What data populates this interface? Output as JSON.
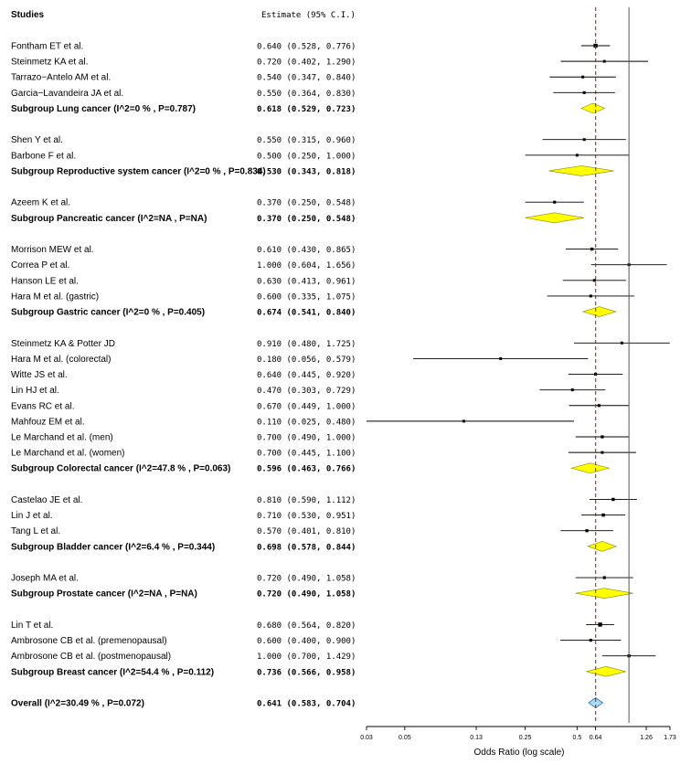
{
  "chart_data": {
    "type": "forest",
    "header_left": "Studies",
    "header_right": "Estimate (95% C.I.)",
    "xlabel": "Odds Ratio (log scale)",
    "x_scale": "log",
    "xlim": [
      0.03,
      1.73
    ],
    "x_ticks": [
      "0.03",
      "0.05",
      "0.13",
      "0.25",
      "0.5",
      "0.64",
      "1.26",
      "1.73"
    ],
    "reference_line": 1.0,
    "overall_line": 0.641,
    "colors": {
      "diamond": "#ffff00",
      "overall_diamond": "#aadcff",
      "refline": "#cc0000"
    },
    "groups": [
      {
        "studies": [
          {
            "name": "Fontham ET et al.",
            "or": 0.64,
            "lo": 0.528,
            "hi": 0.776,
            "est": "0.640 (0.528, 0.776)"
          },
          {
            "name": "Steinmetz KA et al.",
            "or": 0.72,
            "lo": 0.402,
            "hi": 1.29,
            "est": "0.720 (0.402, 1.290)"
          },
          {
            "name": "Tarrazo−Antelo AM et al.",
            "or": 0.54,
            "lo": 0.347,
            "hi": 0.84,
            "est": "0.540 (0.347, 0.840)"
          },
          {
            "name": "Garcia−Lavandeira JA et al.",
            "or": 0.55,
            "lo": 0.364,
            "hi": 0.83,
            "est": "0.550 (0.364, 0.830)"
          }
        ],
        "subgroup": {
          "label": "Subgroup Lung cancer (I^2=0 % , P=0.787)",
          "or": 0.618,
          "lo": 0.529,
          "hi": 0.723,
          "est": "0.618 (0.529, 0.723)"
        }
      },
      {
        "studies": [
          {
            "name": "Shen Y et al.",
            "or": 0.55,
            "lo": 0.315,
            "hi": 0.96,
            "est": "0.550 (0.315, 0.960)"
          },
          {
            "name": "Barbone F et al.",
            "or": 0.5,
            "lo": 0.25,
            "hi": 1.0,
            "est": "0.500 (0.250, 1.000)"
          }
        ],
        "subgroup": {
          "label": "Subgroup Reproductive system cancer (I^2=0 % , P=0.834)",
          "or": 0.53,
          "lo": 0.343,
          "hi": 0.818,
          "est": "0.530 (0.343, 0.818)"
        }
      },
      {
        "studies": [
          {
            "name": "Azeem K et al.",
            "or": 0.37,
            "lo": 0.25,
            "hi": 0.548,
            "est": "0.370 (0.250, 0.548)"
          }
        ],
        "subgroup": {
          "label": "Subgroup Pancreatic cancer (I^2=NA , P=NA)",
          "or": 0.37,
          "lo": 0.25,
          "hi": 0.548,
          "est": "0.370 (0.250, 0.548)"
        }
      },
      {
        "studies": [
          {
            "name": "Morrison MEW et al.",
            "or": 0.61,
            "lo": 0.43,
            "hi": 0.865,
            "est": "0.610 (0.430, 0.865)"
          },
          {
            "name": "Correa P et al.",
            "or": 1.0,
            "lo": 0.604,
            "hi": 1.656,
            "est": "1.000 (0.604, 1.656)"
          },
          {
            "name": "Hanson LE et al.",
            "or": 0.63,
            "lo": 0.413,
            "hi": 0.961,
            "est": "0.630 (0.413, 0.961)"
          },
          {
            "name": "Hara M et al. (gastric)",
            "or": 0.6,
            "lo": 0.335,
            "hi": 1.075,
            "est": "0.600 (0.335, 1.075)"
          }
        ],
        "subgroup": {
          "label": "Subgroup Gastric cancer (I^2=0 % , P=0.405)",
          "or": 0.674,
          "lo": 0.541,
          "hi": 0.84,
          "est": "0.674 (0.541, 0.840)"
        }
      },
      {
        "studies": [
          {
            "name": "Steinmetz KA & Potter JD",
            "or": 0.91,
            "lo": 0.48,
            "hi": 1.725,
            "est": "0.910 (0.480, 1.725)"
          },
          {
            "name": "Hara M et al. (colorectal)",
            "or": 0.18,
            "lo": 0.056,
            "hi": 0.579,
            "est": "0.180 (0.056, 0.579)"
          },
          {
            "name": "Witte JS et al.",
            "or": 0.64,
            "lo": 0.445,
            "hi": 0.92,
            "est": "0.640 (0.445, 0.920)"
          },
          {
            "name": "Lin HJ et al.",
            "or": 0.47,
            "lo": 0.303,
            "hi": 0.729,
            "est": "0.470 (0.303, 0.729)"
          },
          {
            "name": "Evans RC et al.",
            "or": 0.67,
            "lo": 0.449,
            "hi": 1.0,
            "est": "0.670 (0.449, 1.000)"
          },
          {
            "name": "Mahfouz EM et al.",
            "or": 0.11,
            "lo": 0.025,
            "hi": 0.48,
            "est": "0.110 (0.025, 0.480)"
          },
          {
            "name": "Le Marchand et al. (men)",
            "or": 0.7,
            "lo": 0.49,
            "hi": 1.0,
            "est": "0.700 (0.490, 1.000)"
          },
          {
            "name": "Le Marchand et al. (women)",
            "or": 0.7,
            "lo": 0.445,
            "hi": 1.1,
            "est": "0.700 (0.445, 1.100)"
          }
        ],
        "subgroup": {
          "label": "Subgroup Colorectal cancer (I^2=47.8 % , P=0.063)",
          "or": 0.596,
          "lo": 0.463,
          "hi": 0.766,
          "est": "0.596 (0.463, 0.766)"
        }
      },
      {
        "studies": [
          {
            "name": "Castelao JE et al.",
            "or": 0.81,
            "lo": 0.59,
            "hi": 1.112,
            "est": "0.810 (0.590, 1.112)"
          },
          {
            "name": "Lin J et al.",
            "or": 0.71,
            "lo": 0.53,
            "hi": 0.951,
            "est": "0.710 (0.530, 0.951)"
          },
          {
            "name": "Tang L et al.",
            "or": 0.57,
            "lo": 0.401,
            "hi": 0.81,
            "est": "0.570 (0.401, 0.810)"
          }
        ],
        "subgroup": {
          "label": "Subgroup Bladder cancer (I^2=6.4 % , P=0.344)",
          "or": 0.698,
          "lo": 0.578,
          "hi": 0.844,
          "est": "0.698 (0.578, 0.844)"
        }
      },
      {
        "studies": [
          {
            "name": "Joseph MA et al.",
            "or": 0.72,
            "lo": 0.49,
            "hi": 1.058,
            "est": "0.720 (0.490, 1.058)"
          }
        ],
        "subgroup": {
          "label": "Subgroup Prostate cancer (I^2=NA , P=NA)",
          "or": 0.72,
          "lo": 0.49,
          "hi": 1.058,
          "est": "0.720 (0.490, 1.058)"
        }
      },
      {
        "studies": [
          {
            "name": "Lin T et al.",
            "or": 0.68,
            "lo": 0.564,
            "hi": 0.82,
            "est": "0.680 (0.564, 0.820)"
          },
          {
            "name": "Ambrosone CB et al. (premenopausal)",
            "or": 0.6,
            "lo": 0.4,
            "hi": 0.9,
            "est": "0.600 (0.400, 0.900)"
          },
          {
            "name": "Ambrosone CB et al. (postmenopausal)",
            "or": 1.0,
            "lo": 0.7,
            "hi": 1.429,
            "est": "1.000 (0.700, 1.429)"
          }
        ],
        "subgroup": {
          "label": "Subgroup Breast cancer (I^2=54.4 % , P=0.112)",
          "or": 0.736,
          "lo": 0.566,
          "hi": 0.958,
          "est": "0.736 (0.566, 0.958)"
        }
      }
    ],
    "overall": {
      "label": "Overall (I^2=30.49 % , P=0.072)",
      "or": 0.641,
      "lo": 0.583,
      "hi": 0.704,
      "est": "0.641 (0.583, 0.704)"
    }
  }
}
